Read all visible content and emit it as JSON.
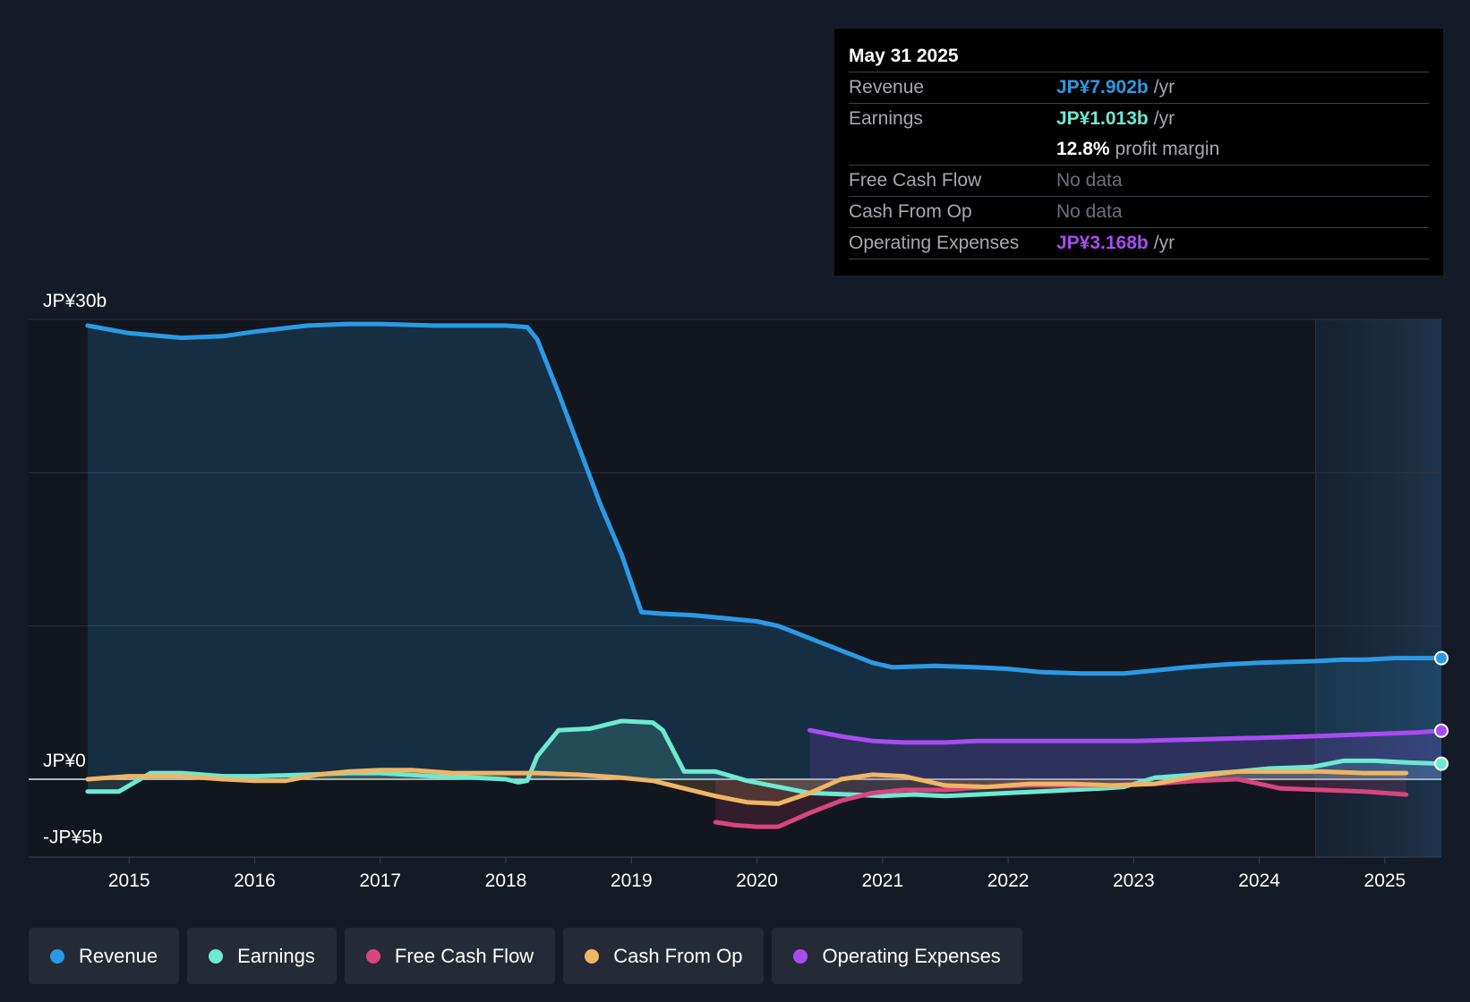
{
  "colors": {
    "revenue": "#2b9ae6",
    "earnings": "#6ee9d2",
    "free_cash_flow": "#d8457f",
    "cash_from_op": "#f0b565",
    "operating_expenses": "#a84cf2",
    "background": "#151b26",
    "text": "#ffffff"
  },
  "tooltip": {
    "date": "May 31 2025",
    "rows": [
      {
        "label": "Revenue",
        "value": "JP¥7.902b",
        "unit": "/yr"
      },
      {
        "label": "Earnings",
        "value": "JP¥1.013b",
        "unit": "/yr"
      },
      {
        "label": "",
        "value": "12.8%",
        "unit": "profit margin"
      },
      {
        "label": "Free Cash Flow",
        "value": "No data"
      },
      {
        "label": "Cash From Op",
        "value": "No data"
      },
      {
        "label": "Operating Expenses",
        "value": "JP¥3.168b",
        "unit": "/yr"
      }
    ]
  },
  "legend": [
    "Revenue",
    "Earnings",
    "Free Cash Flow",
    "Cash From Op",
    "Operating Expenses"
  ],
  "chart_data": {
    "type": "line",
    "title": "",
    "xlabel": "",
    "ylabel": "",
    "ylim": [
      -5,
      30
    ],
    "xlim": [
      2014.2,
      2025.45
    ],
    "y_tick_labels": [
      {
        "value": 30,
        "label": "JP¥30b"
      },
      {
        "value": 0,
        "label": "JP¥0"
      },
      {
        "value": -5,
        "label": "-JP¥5b"
      }
    ],
    "gridlines": [
      30,
      20,
      10,
      0
    ],
    "x_ticks": [
      "2015",
      "2016",
      "2017",
      "2018",
      "2019",
      "2020",
      "2021",
      "2022",
      "2023",
      "2024",
      "2025"
    ],
    "forecast_start": 2024.45,
    "series": [
      {
        "name": "Revenue",
        "key": "revenue",
        "filled": true,
        "x": [
          2014.67,
          2015.0,
          2015.42,
          2015.75,
          2016.0,
          2016.42,
          2016.75,
          2017.0,
          2017.42,
          2017.75,
          2018.0,
          2018.17,
          2018.25,
          2018.42,
          2018.75,
          2018.92,
          2019.08,
          2019.25,
          2019.5,
          2019.75,
          2020.0,
          2020.17,
          2020.42,
          2020.67,
          2020.92,
          2021.08,
          2021.42,
          2021.75,
          2022.0,
          2022.25,
          2022.58,
          2022.92,
          2023.17,
          2023.42,
          2023.75,
          2024.0,
          2024.42,
          2024.67,
          2024.83,
          2025.08,
          2025.25,
          2025.45
        ],
        "values": [
          29.6,
          29.1,
          28.8,
          28.9,
          29.2,
          29.6,
          29.7,
          29.7,
          29.6,
          29.6,
          29.6,
          29.5,
          28.7,
          25.2,
          18.0,
          14.7,
          10.9,
          10.8,
          10.7,
          10.5,
          10.3,
          10.0,
          9.2,
          8.4,
          7.6,
          7.3,
          7.4,
          7.3,
          7.2,
          7.0,
          6.9,
          6.9,
          7.1,
          7.3,
          7.5,
          7.6,
          7.7,
          7.8,
          7.8,
          7.9,
          7.9,
          7.9
        ]
      },
      {
        "name": "Earnings",
        "key": "earnings",
        "filled": true,
        "x": [
          2014.67,
          2014.92,
          2015.17,
          2015.42,
          2015.75,
          2016.0,
          2016.42,
          2016.75,
          2017.0,
          2017.42,
          2017.75,
          2018.0,
          2018.1,
          2018.17,
          2018.25,
          2018.42,
          2018.67,
          2018.92,
          2019.17,
          2019.25,
          2019.42,
          2019.67,
          2019.92,
          2020.17,
          2020.42,
          2020.75,
          2021.0,
          2021.25,
          2021.5,
          2021.75,
          2022.0,
          2022.25,
          2022.5,
          2022.75,
          2022.92,
          2023.17,
          2023.5,
          2023.83,
          2024.08,
          2024.42,
          2024.67,
          2024.92,
          2025.17,
          2025.45
        ],
        "values": [
          -0.8,
          -0.8,
          0.4,
          0.4,
          0.2,
          0.2,
          0.3,
          0.4,
          0.4,
          0.2,
          0.1,
          0.0,
          -0.2,
          -0.1,
          1.5,
          3.2,
          3.3,
          3.8,
          3.7,
          3.2,
          0.5,
          0.5,
          -0.1,
          -0.5,
          -0.9,
          -1.0,
          -1.1,
          -1.0,
          -1.1,
          -1.0,
          -0.9,
          -0.8,
          -0.7,
          -0.6,
          -0.5,
          0.1,
          0.3,
          0.5,
          0.7,
          0.8,
          1.2,
          1.2,
          1.1,
          1.013
        ]
      },
      {
        "name": "Free Cash Flow",
        "key": "free_cash_flow",
        "filled": true,
        "x": [
          2019.67,
          2019.83,
          2020.0,
          2020.17,
          2020.42,
          2020.67,
          2020.92,
          2021.17,
          2021.5,
          2021.83,
          2022.17,
          2022.5,
          2022.83,
          2023.17,
          2023.5,
          2023.83,
          2024.17,
          2024.5,
          2024.83,
          2025.17
        ],
        "values": [
          -2.8,
          -3.0,
          -3.1,
          -3.1,
          -2.2,
          -1.4,
          -0.9,
          -0.7,
          -0.7,
          -0.5,
          -0.4,
          -0.4,
          -0.4,
          -0.3,
          -0.1,
          0.0,
          -0.6,
          -0.7,
          -0.8,
          -1.0
        ]
      },
      {
        "name": "Cash From Op",
        "key": "cash_from_op",
        "filled": true,
        "x": [
          2014.67,
          2015.0,
          2015.42,
          2015.75,
          2016.0,
          2016.25,
          2016.5,
          2016.75,
          2017.0,
          2017.25,
          2017.58,
          2018.0,
          2018.25,
          2018.58,
          2018.92,
          2019.17,
          2019.42,
          2019.67,
          2019.92,
          2020.17,
          2020.42,
          2020.67,
          2020.92,
          2021.17,
          2021.5,
          2021.83,
          2022.17,
          2022.5,
          2022.83,
          2023.17,
          2023.5,
          2023.83,
          2024.17,
          2024.5,
          2024.83,
          2025.17
        ],
        "values": [
          0.0,
          0.2,
          0.2,
          0.0,
          -0.1,
          -0.1,
          0.3,
          0.5,
          0.6,
          0.6,
          0.4,
          0.4,
          0.4,
          0.3,
          0.1,
          -0.1,
          -0.6,
          -1.1,
          -1.5,
          -1.6,
          -0.9,
          0.0,
          0.3,
          0.2,
          -0.4,
          -0.5,
          -0.3,
          -0.3,
          -0.4,
          -0.3,
          0.2,
          0.5,
          0.5,
          0.5,
          0.4,
          0.4
        ]
      },
      {
        "name": "Operating Expenses",
        "key": "operating_expenses",
        "filled": true,
        "x": [
          2020.42,
          2020.67,
          2020.92,
          2021.17,
          2021.5,
          2021.75,
          2022.0,
          2022.5,
          2023.0,
          2023.5,
          2024.0,
          2024.42,
          2024.75,
          2025.08,
          2025.25,
          2025.45
        ],
        "values": [
          3.2,
          2.8,
          2.5,
          2.4,
          2.4,
          2.5,
          2.5,
          2.5,
          2.5,
          2.6,
          2.7,
          2.8,
          2.9,
          3.0,
          3.05,
          3.168
        ]
      }
    ]
  }
}
